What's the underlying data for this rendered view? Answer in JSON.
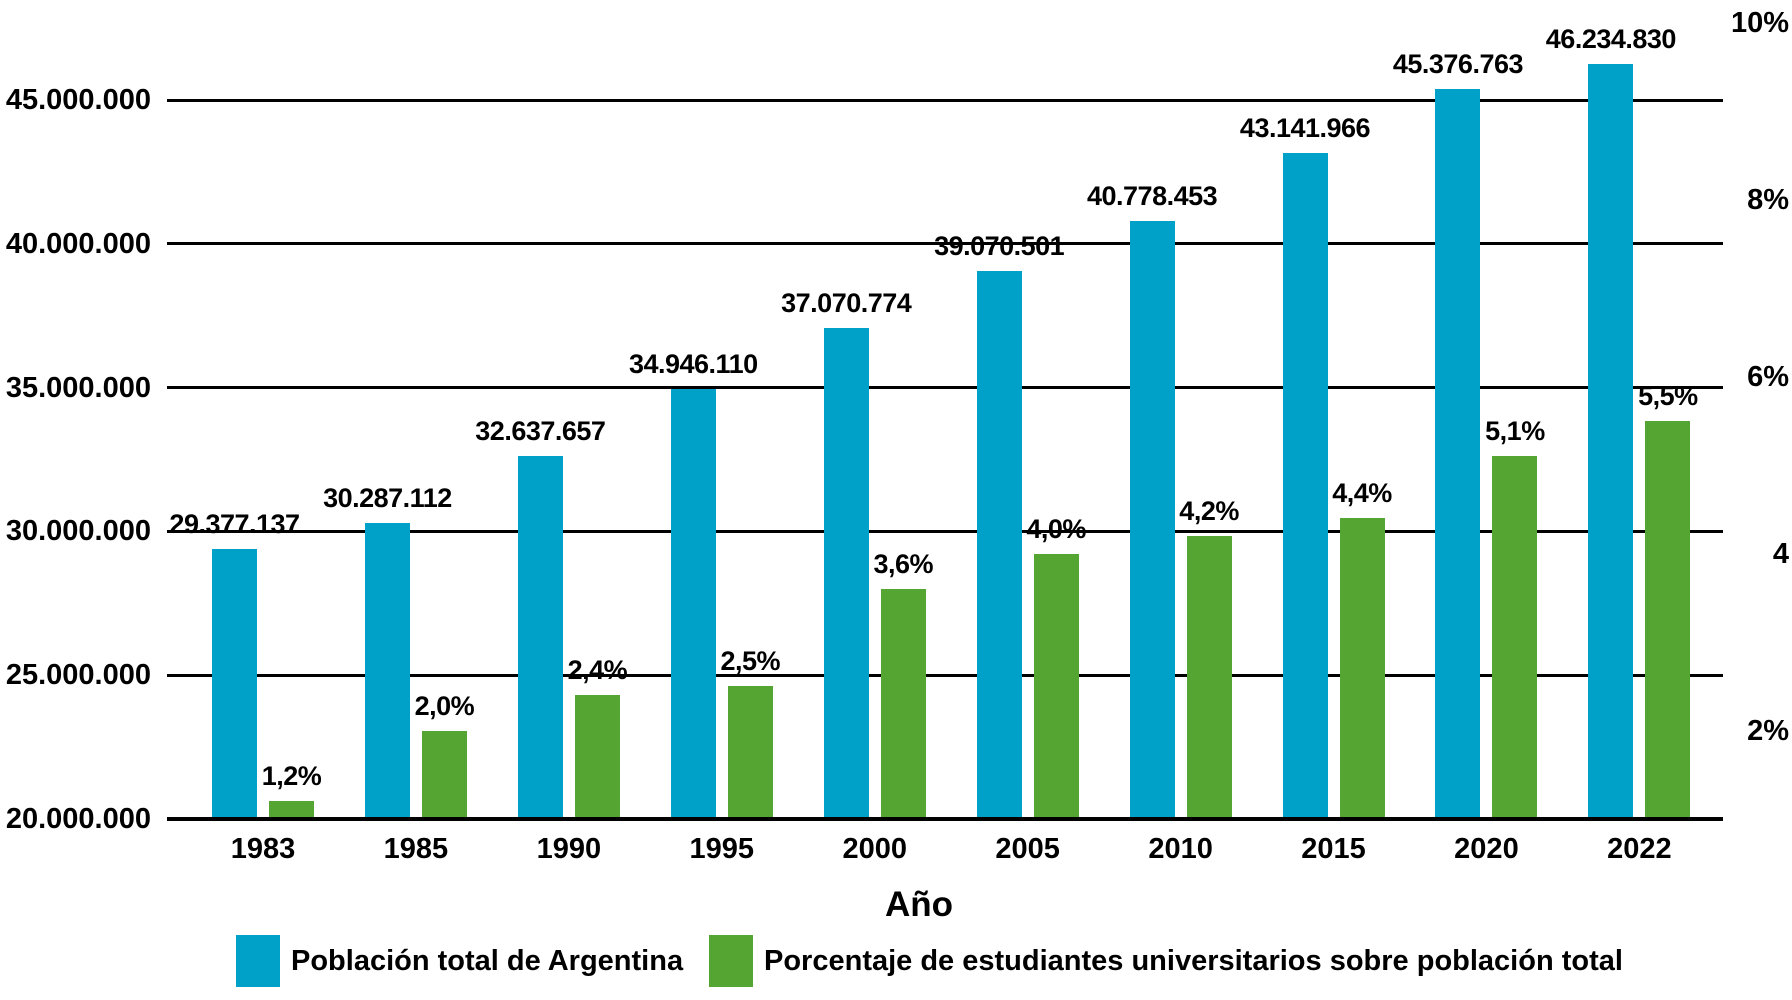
{
  "chart_data": {
    "type": "bar",
    "title": "",
    "xlabel": "Año",
    "background": "#ffffff",
    "grid": "horizontal",
    "legend_position": "bottom",
    "categories": [
      "1983",
      "1985",
      "1990",
      "1995",
      "2000",
      "2005",
      "2010",
      "2015",
      "2020",
      "2022"
    ],
    "series": [
      {
        "name": "Población total de Argentina",
        "axis": "left",
        "color": "#00A1C9",
        "values": [
          29377137,
          30287112,
          32637657,
          34946110,
          37070774,
          39070501,
          40778453,
          43141966,
          45376763,
          46234830
        ],
        "labels": [
          "29.377.137",
          "30.287.112",
          "32.637.657",
          "34.946.110",
          "37.070.774",
          "39.070.501",
          "40.778.453",
          "43.141.966",
          "45.376.763",
          "46.234.830"
        ]
      },
      {
        "name": "Porcentaje de estudiantes universitarios sobre población total",
        "axis": "right",
        "color": "#55A532",
        "values": [
          1.2,
          2.0,
          2.4,
          2.5,
          3.6,
          4.0,
          4.2,
          4.4,
          5.1,
          5.5
        ],
        "labels": [
          "1,2%",
          "2,0%",
          "2,4%",
          "2,5%",
          "3,6%",
          "4,0%",
          "4,2%",
          "4,4%",
          "5,1%",
          "5,5%"
        ]
      }
    ],
    "left_axis": {
      "min": 20000000,
      "max": 45000000,
      "ticks": [
        {
          "value": 45000000,
          "label": "45.000.000"
        },
        {
          "value": 40000000,
          "label": "40.000.000"
        },
        {
          "value": 35000000,
          "label": "35.000.000"
        },
        {
          "value": 30000000,
          "label": "30.000.000"
        },
        {
          "value": 25000000,
          "label": "25.000.000"
        },
        {
          "value": 20000000,
          "label": "20.000.000"
        }
      ]
    },
    "right_axis": {
      "baseline_value": 1,
      "ticks": [
        {
          "value": 10,
          "label": "10%"
        },
        {
          "value": 8,
          "label": "8%"
        },
        {
          "value": 6,
          "label": "6%"
        },
        {
          "value": 4,
          "label": "4"
        },
        {
          "value": 2,
          "label": "2%"
        }
      ]
    },
    "legend": [
      {
        "label": "Población total de Argentina",
        "color": "#00A1C9"
      },
      {
        "label": "Porcentaje de estudiantes universitarios sobre población total",
        "color": "#55A532"
      }
    ]
  }
}
